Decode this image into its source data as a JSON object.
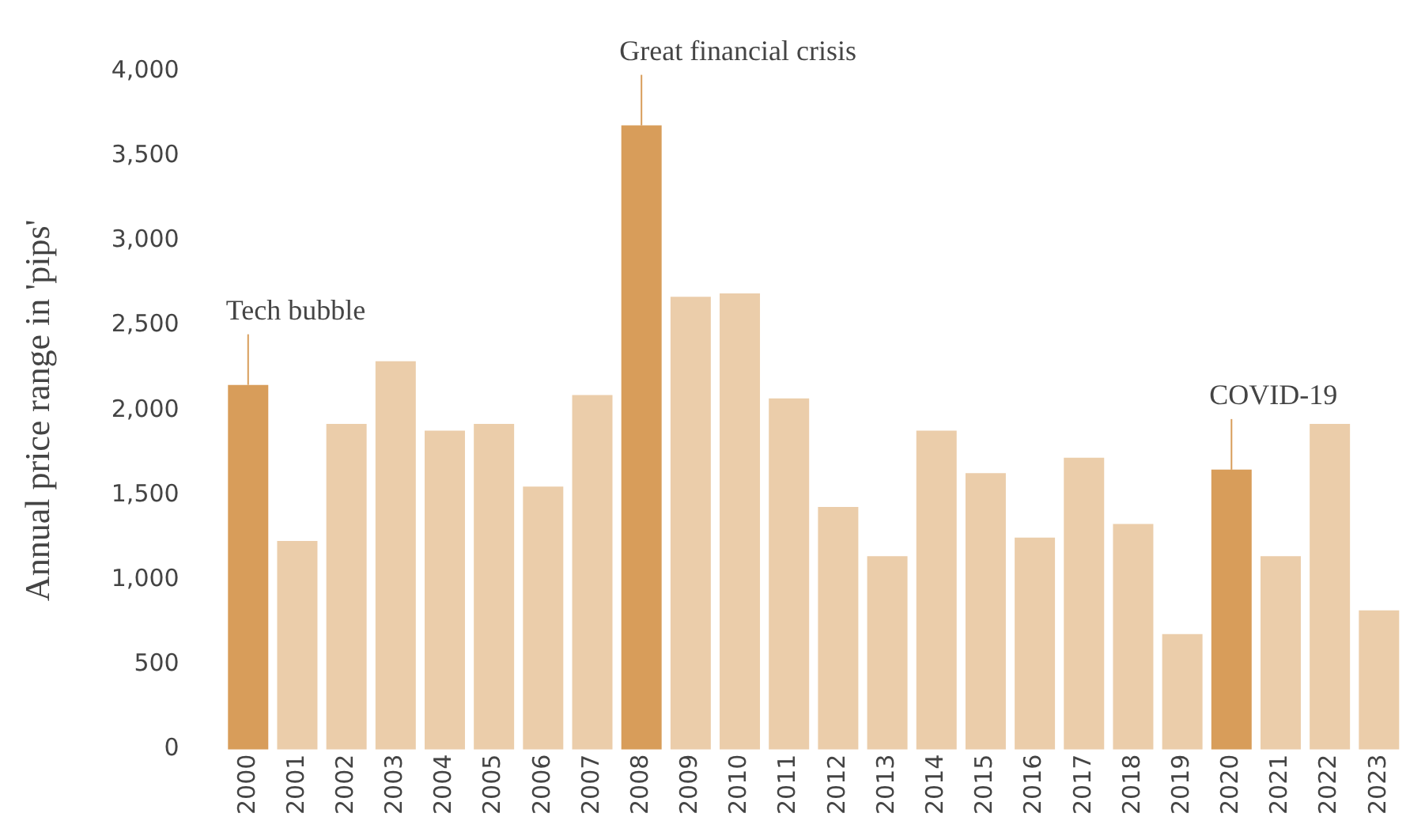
{
  "chart_data": {
    "type": "bar",
    "ylabel": "Annual price range in 'pips'",
    "categories": [
      "2000",
      "2001",
      "2002",
      "2003",
      "2004",
      "2005",
      "2006",
      "2007",
      "2008",
      "2009",
      "2010",
      "2011",
      "2012",
      "2013",
      "2014",
      "2015",
      "2016",
      "2017",
      "2018",
      "2019",
      "2020",
      "2021",
      "2022",
      "2023"
    ],
    "values": [
      2150,
      1230,
      1920,
      2290,
      1880,
      1920,
      1550,
      2090,
      3680,
      2670,
      2690,
      2070,
      1430,
      1140,
      1880,
      1630,
      1250,
      1720,
      1330,
      680,
      1650,
      1140,
      1920,
      820
    ],
    "colors": [
      "#d89d5a",
      "#ebcdaa",
      "#ebcdaa",
      "#ebcdaa",
      "#ebcdaa",
      "#ebcdaa",
      "#ebcdaa",
      "#ebcdaa",
      "#d89d5a",
      "#ebcdaa",
      "#ebcdaa",
      "#ebcdaa",
      "#ebcdaa",
      "#ebcdaa",
      "#ebcdaa",
      "#ebcdaa",
      "#ebcdaa",
      "#ebcdaa",
      "#ebcdaa",
      "#ebcdaa",
      "#d89d5a",
      "#ebcdaa",
      "#ebcdaa",
      "#ebcdaa"
    ],
    "ylim": [
      0,
      4000
    ],
    "yticks": [
      0,
      {
        "value": 500,
        "label": "500"
      },
      {
        "value": 1000,
        "label": "1,000"
      },
      {
        "value": 1500,
        "label": "1,500"
      },
      {
        "value": 2000,
        "label": "2,000"
      },
      {
        "value": 2500,
        "label": "2,500"
      },
      {
        "value": 3000,
        "label": "3,000"
      },
      {
        "value": 3500,
        "label": "3,500"
      },
      {
        "value": 4000,
        "label": "4,000"
      }
    ],
    "grid": false,
    "legend": false,
    "annotations": [
      {
        "text": "Tech bubble",
        "x": "2000",
        "y": 2150
      },
      {
        "text": "Great financial crisis",
        "x": "2008",
        "y": 3680
      },
      {
        "text": "COVID-19",
        "x": "2020",
        "y": 1650
      }
    ]
  }
}
